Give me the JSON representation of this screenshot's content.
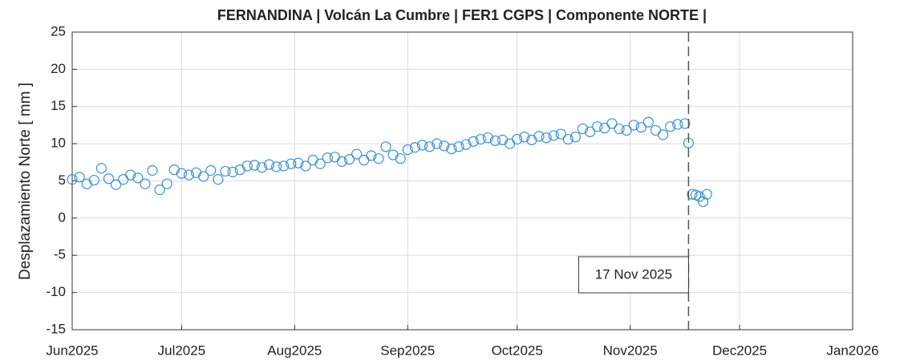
{
  "chart_data": {
    "type": "scatter",
    "title": "FERNANDINA | Volcán La Cumbre | FER1 CGPS | Componente NORTE |",
    "ylabel": "Desplazamiento Norte [ mm ]",
    "color": "#3b8fd4",
    "grid": true,
    "xlim": [
      "2025-06-01",
      "2026-01-01"
    ],
    "xticks": [
      {
        "value": "2025-06-01",
        "label": "Jun2025"
      },
      {
        "value": "2025-07-01",
        "label": "Jul2025"
      },
      {
        "value": "2025-08-01",
        "label": "Aug2025"
      },
      {
        "value": "2025-09-01",
        "label": "Sep2025"
      },
      {
        "value": "2025-10-01",
        "label": "Oct2025"
      },
      {
        "value": "2025-11-01",
        "label": "Nov2025"
      },
      {
        "value": "2025-12-01",
        "label": "Dec2025"
      },
      {
        "value": "2026-01-01",
        "label": "Jan2026"
      }
    ],
    "ylim": [
      -15,
      25
    ],
    "yticks": [
      -15,
      -10,
      -5,
      0,
      5,
      10,
      15,
      20,
      25
    ],
    "annotation": {
      "x": "2025-11-17",
      "text": "17 Nov 2025"
    },
    "x": [
      "2025-06-01",
      "2025-06-03",
      "2025-06-05",
      "2025-06-07",
      "2025-06-09",
      "2025-06-11",
      "2025-06-13",
      "2025-06-15",
      "2025-06-17",
      "2025-06-19",
      "2025-06-21",
      "2025-06-23",
      "2025-06-25",
      "2025-06-27",
      "2025-06-29",
      "2025-07-01",
      "2025-07-03",
      "2025-07-05",
      "2025-07-07",
      "2025-07-09",
      "2025-07-11",
      "2025-07-13",
      "2025-07-15",
      "2025-07-17",
      "2025-07-19",
      "2025-07-21",
      "2025-07-23",
      "2025-07-25",
      "2025-07-27",
      "2025-07-29",
      "2025-07-31",
      "2025-08-02",
      "2025-08-04",
      "2025-08-06",
      "2025-08-08",
      "2025-08-10",
      "2025-08-12",
      "2025-08-14",
      "2025-08-16",
      "2025-08-18",
      "2025-08-20",
      "2025-08-22",
      "2025-08-24",
      "2025-08-26",
      "2025-08-28",
      "2025-08-30",
      "2025-09-01",
      "2025-09-03",
      "2025-09-05",
      "2025-09-07",
      "2025-09-09",
      "2025-09-11",
      "2025-09-13",
      "2025-09-15",
      "2025-09-17",
      "2025-09-19",
      "2025-09-21",
      "2025-09-23",
      "2025-09-25",
      "2025-09-27",
      "2025-09-29",
      "2025-10-01",
      "2025-10-03",
      "2025-10-05",
      "2025-10-07",
      "2025-10-09",
      "2025-10-11",
      "2025-10-13",
      "2025-10-15",
      "2025-10-17",
      "2025-10-19",
      "2025-10-21",
      "2025-10-23",
      "2025-10-25",
      "2025-10-27",
      "2025-10-29",
      "2025-10-31",
      "2025-11-02",
      "2025-11-04",
      "2025-11-06",
      "2025-11-08",
      "2025-11-10",
      "2025-11-12",
      "2025-11-14",
      "2025-11-16",
      "2025-11-17",
      "2025-11-18",
      "2025-11-19",
      "2025-11-20",
      "2025-11-21",
      "2025-11-22"
    ],
    "values": [
      5.2,
      5.5,
      4.6,
      5.1,
      6.7,
      5.3,
      4.5,
      5.2,
      5.8,
      5.4,
      4.6,
      6.4,
      3.8,
      4.6,
      6.5,
      6.0,
      5.8,
      6.1,
      5.6,
      6.4,
      5.2,
      6.3,
      6.2,
      6.5,
      7.0,
      7.1,
      6.8,
      7.2,
      6.9,
      7.0,
      7.3,
      7.4,
      7.0,
      7.8,
      7.3,
      8.1,
      8.2,
      7.6,
      7.9,
      8.6,
      7.8,
      8.4,
      8.0,
      9.6,
      8.5,
      8.0,
      9.2,
      9.5,
      9.8,
      9.6,
      10.0,
      9.7,
      9.3,
      9.6,
      9.9,
      10.3,
      10.6,
      10.8,
      10.4,
      10.5,
      10.0,
      10.6,
      10.9,
      10.5,
      11.0,
      10.8,
      11.1,
      11.3,
      10.6,
      10.9,
      12.0,
      11.6,
      12.3,
      12.1,
      12.7,
      12.0,
      11.8,
      12.5,
      12.2,
      12.9,
      11.8,
      11.2,
      12.3,
      12.6,
      12.7,
      10.1,
      3.2,
      3.1,
      2.9,
      2.2,
      3.2
    ]
  }
}
